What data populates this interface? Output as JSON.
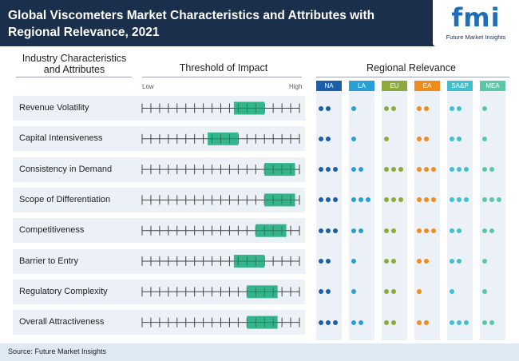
{
  "header": {
    "title": "Global Viscometers Market Characteristics and Attributes with Regional Relevance, 2021",
    "logo_text": "fmi",
    "logo_subtitle": "Future Market Insights"
  },
  "columns": {
    "characteristics": "Industry Characteristics and Attributes",
    "threshold": "Threshold of Impact",
    "regional": "Regional Relevance",
    "low": "Low",
    "high": "High"
  },
  "colors": {
    "header_bg": "#1a2f4b",
    "row_bg": "#ecf1f7",
    "bar": "#34b58c",
    "dot_NA": "#1a5fa8",
    "dot_LA": "#2a9fd6",
    "dot_EU": "#8cab3c",
    "dot_EA": "#f08c1e",
    "dot_SAP": "#40bfcf",
    "dot_MEA": "#5cc7a4"
  },
  "chart_data": {
    "type": "table",
    "scale": {
      "ticks": 19,
      "min": 0,
      "max": 18
    },
    "regions": [
      {
        "code": "NA",
        "label": "NA",
        "color": "#1a5fa8"
      },
      {
        "code": "LA",
        "label": "LA",
        "color": "#2a9fd6"
      },
      {
        "code": "EU",
        "label": "EU",
        "color": "#8cab3c"
      },
      {
        "code": "EA",
        "label": "EA",
        "color": "#f08c1e"
      },
      {
        "code": "SAP",
        "label": "SA&P",
        "color": "#40bfcf"
      },
      {
        "code": "MEA",
        "label": "MEA",
        "color": "#5cc7a4"
      }
    ],
    "rows": [
      {
        "label": "Revenue Volatility",
        "impact": [
          10.5,
          14
        ],
        "relevance": [
          2,
          1,
          2,
          2,
          2,
          1
        ]
      },
      {
        "label": "Capital Intensiveness",
        "impact": [
          7.5,
          11
        ],
        "relevance": [
          2,
          1,
          1,
          2,
          2,
          1
        ]
      },
      {
        "label": "Consistency in Demand",
        "impact": [
          14,
          17.5
        ],
        "relevance": [
          3,
          2,
          3,
          3,
          3,
          2
        ]
      },
      {
        "label": "Scope of Differentiation",
        "impact": [
          14,
          17.5
        ],
        "relevance": [
          3,
          3,
          3,
          3,
          3,
          3
        ]
      },
      {
        "label": "Competitiveness",
        "impact": [
          13,
          16.5
        ],
        "relevance": [
          3,
          2,
          2,
          3,
          2,
          2
        ]
      },
      {
        "label": "Barrier to Entry",
        "impact": [
          10.5,
          14
        ],
        "relevance": [
          2,
          1,
          2,
          2,
          2,
          1
        ]
      },
      {
        "label": "Regulatory Complexity",
        "impact": [
          12,
          15.5
        ],
        "relevance": [
          2,
          1,
          2,
          1,
          1,
          1
        ]
      },
      {
        "label": "Overall Attractiveness",
        "impact": [
          12,
          15.5
        ],
        "relevance": [
          3,
          2,
          2,
          2,
          3,
          2
        ]
      }
    ]
  },
  "footer": {
    "source": "Source: Future Market Insights"
  }
}
